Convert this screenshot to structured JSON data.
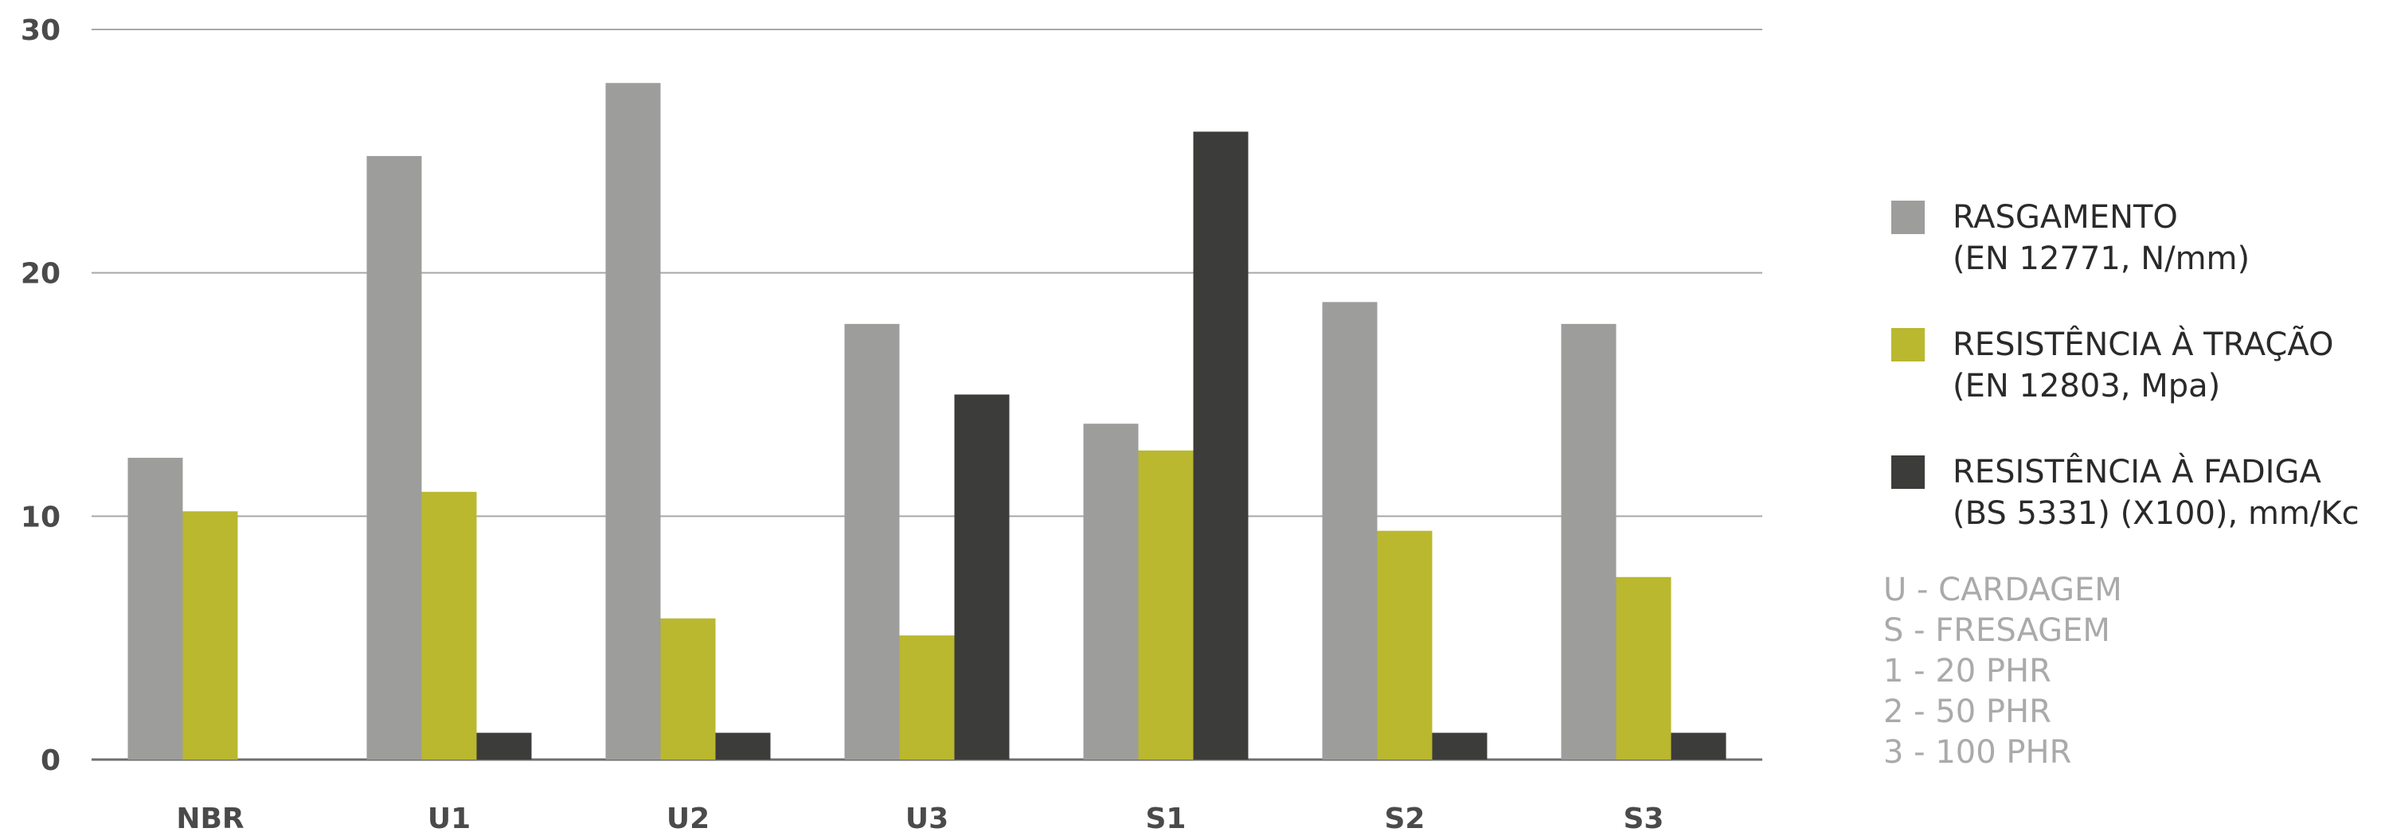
{
  "chart_data": {
    "type": "bar",
    "categories": [
      "NBR",
      "U1",
      "U2",
      "U3",
      "S1",
      "S2",
      "S3"
    ],
    "series": [
      {
        "name": "RASGAMENTO",
        "name_line2": "(EN 12771, N/mm)",
        "color": "#9d9d9c",
        "values": [
          12.4,
          24.8,
          27.8,
          17.9,
          13.8,
          18.8,
          17.9
        ]
      },
      {
        "name": "RESISTÊNCIA À TRAÇÃO",
        "name_line2": "(EN 12803, Mpa)",
        "color": "#b9b82f",
        "values": [
          10.2,
          11.0,
          5.8,
          5.1,
          12.7,
          9.4,
          7.5
        ]
      },
      {
        "name": "RESISTÊNCIA À FADIGA",
        "name_line2": "(BS 5331) (X100), mm/Kc",
        "color": "#3c3c3b",
        "values": [
          0,
          1.1,
          1.1,
          15.0,
          25.8,
          1.1,
          1.1
        ]
      }
    ],
    "y_ticks": [
      "0",
      "10",
      "20",
      "30"
    ],
    "ylim": [
      0,
      30
    ],
    "grid": true,
    "legend_position": "right",
    "notes": [
      "U - CARDAGEM",
      "S - FRESAGEM",
      "1 - 20 PHR",
      "2 - 50 PHR",
      "3 - 100 PHR"
    ]
  }
}
